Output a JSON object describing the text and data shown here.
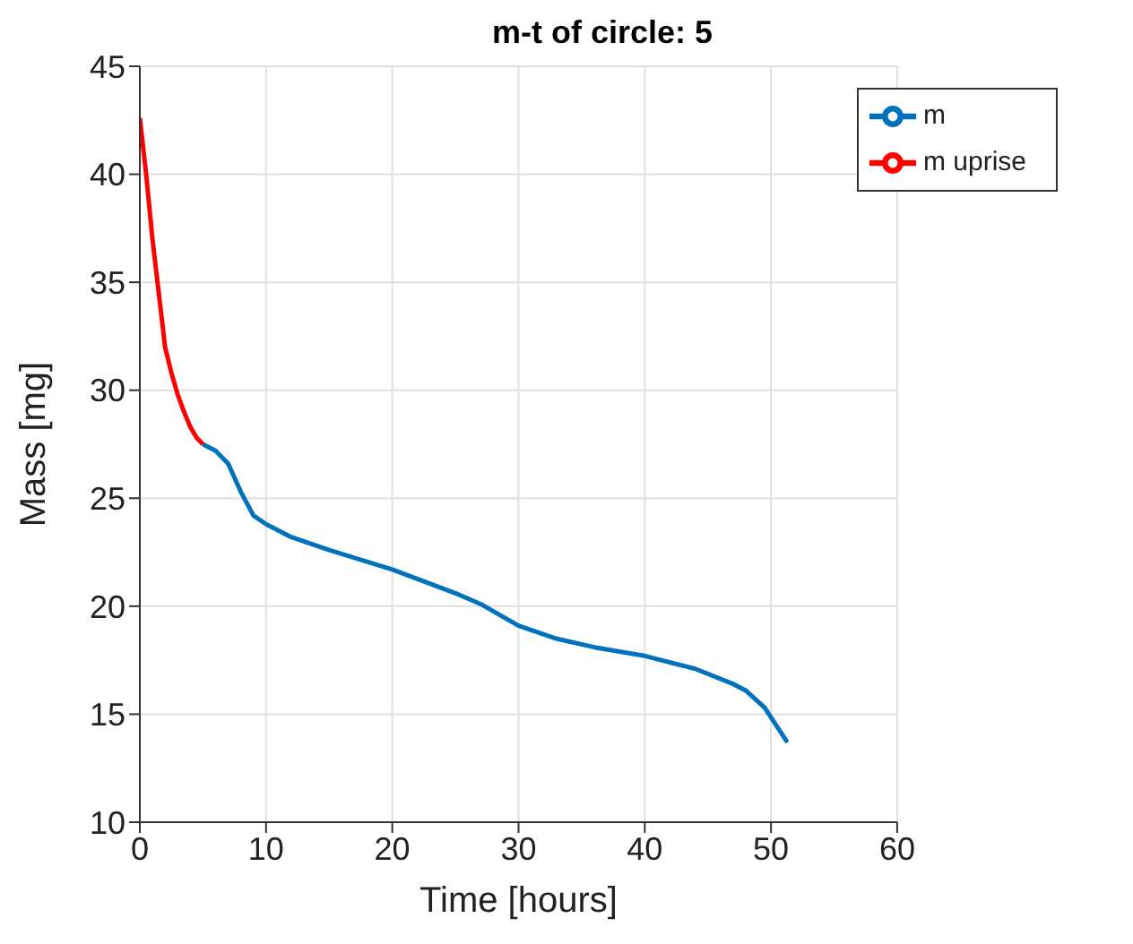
{
  "chart_data": {
    "type": "line",
    "title": "m-t of circle: 5",
    "xlabel": "Time [hours]",
    "ylabel": "Mass [mg]",
    "xlim": [
      0,
      60
    ],
    "xticks": [
      0,
      10,
      20,
      30,
      40,
      50,
      60
    ],
    "ylim": [
      10,
      45
    ],
    "yticks": [
      10,
      15,
      20,
      25,
      30,
      35,
      40,
      45
    ],
    "grid": true,
    "legend": "top right",
    "line_style": "solid",
    "marker": "none",
    "series": [
      {
        "name": "m",
        "color": "#0072bd",
        "x": [
          5,
          6,
          7,
          8,
          9,
          10,
          12,
          15,
          20,
          25,
          27,
          30,
          33,
          36,
          40,
          44,
          47,
          48,
          49.5,
          51.3
        ],
        "values": [
          27.5,
          27.2,
          26.6,
          25.3,
          24.2,
          23.8,
          23.2,
          22.6,
          21.7,
          20.6,
          20.1,
          19.1,
          18.5,
          18.1,
          17.7,
          17.1,
          16.4,
          16.1,
          15.3,
          13.7
        ]
      },
      {
        "name": "m uprise",
        "color": "#ff0000",
        "x": [
          0,
          0.5,
          1,
          1.5,
          2,
          2.5,
          3,
          3.5,
          4,
          4.5,
          5
        ],
        "values": [
          42.6,
          40,
          37,
          34.5,
          32,
          30.8,
          29.8,
          29,
          28.3,
          27.8,
          27.5
        ]
      }
    ]
  }
}
